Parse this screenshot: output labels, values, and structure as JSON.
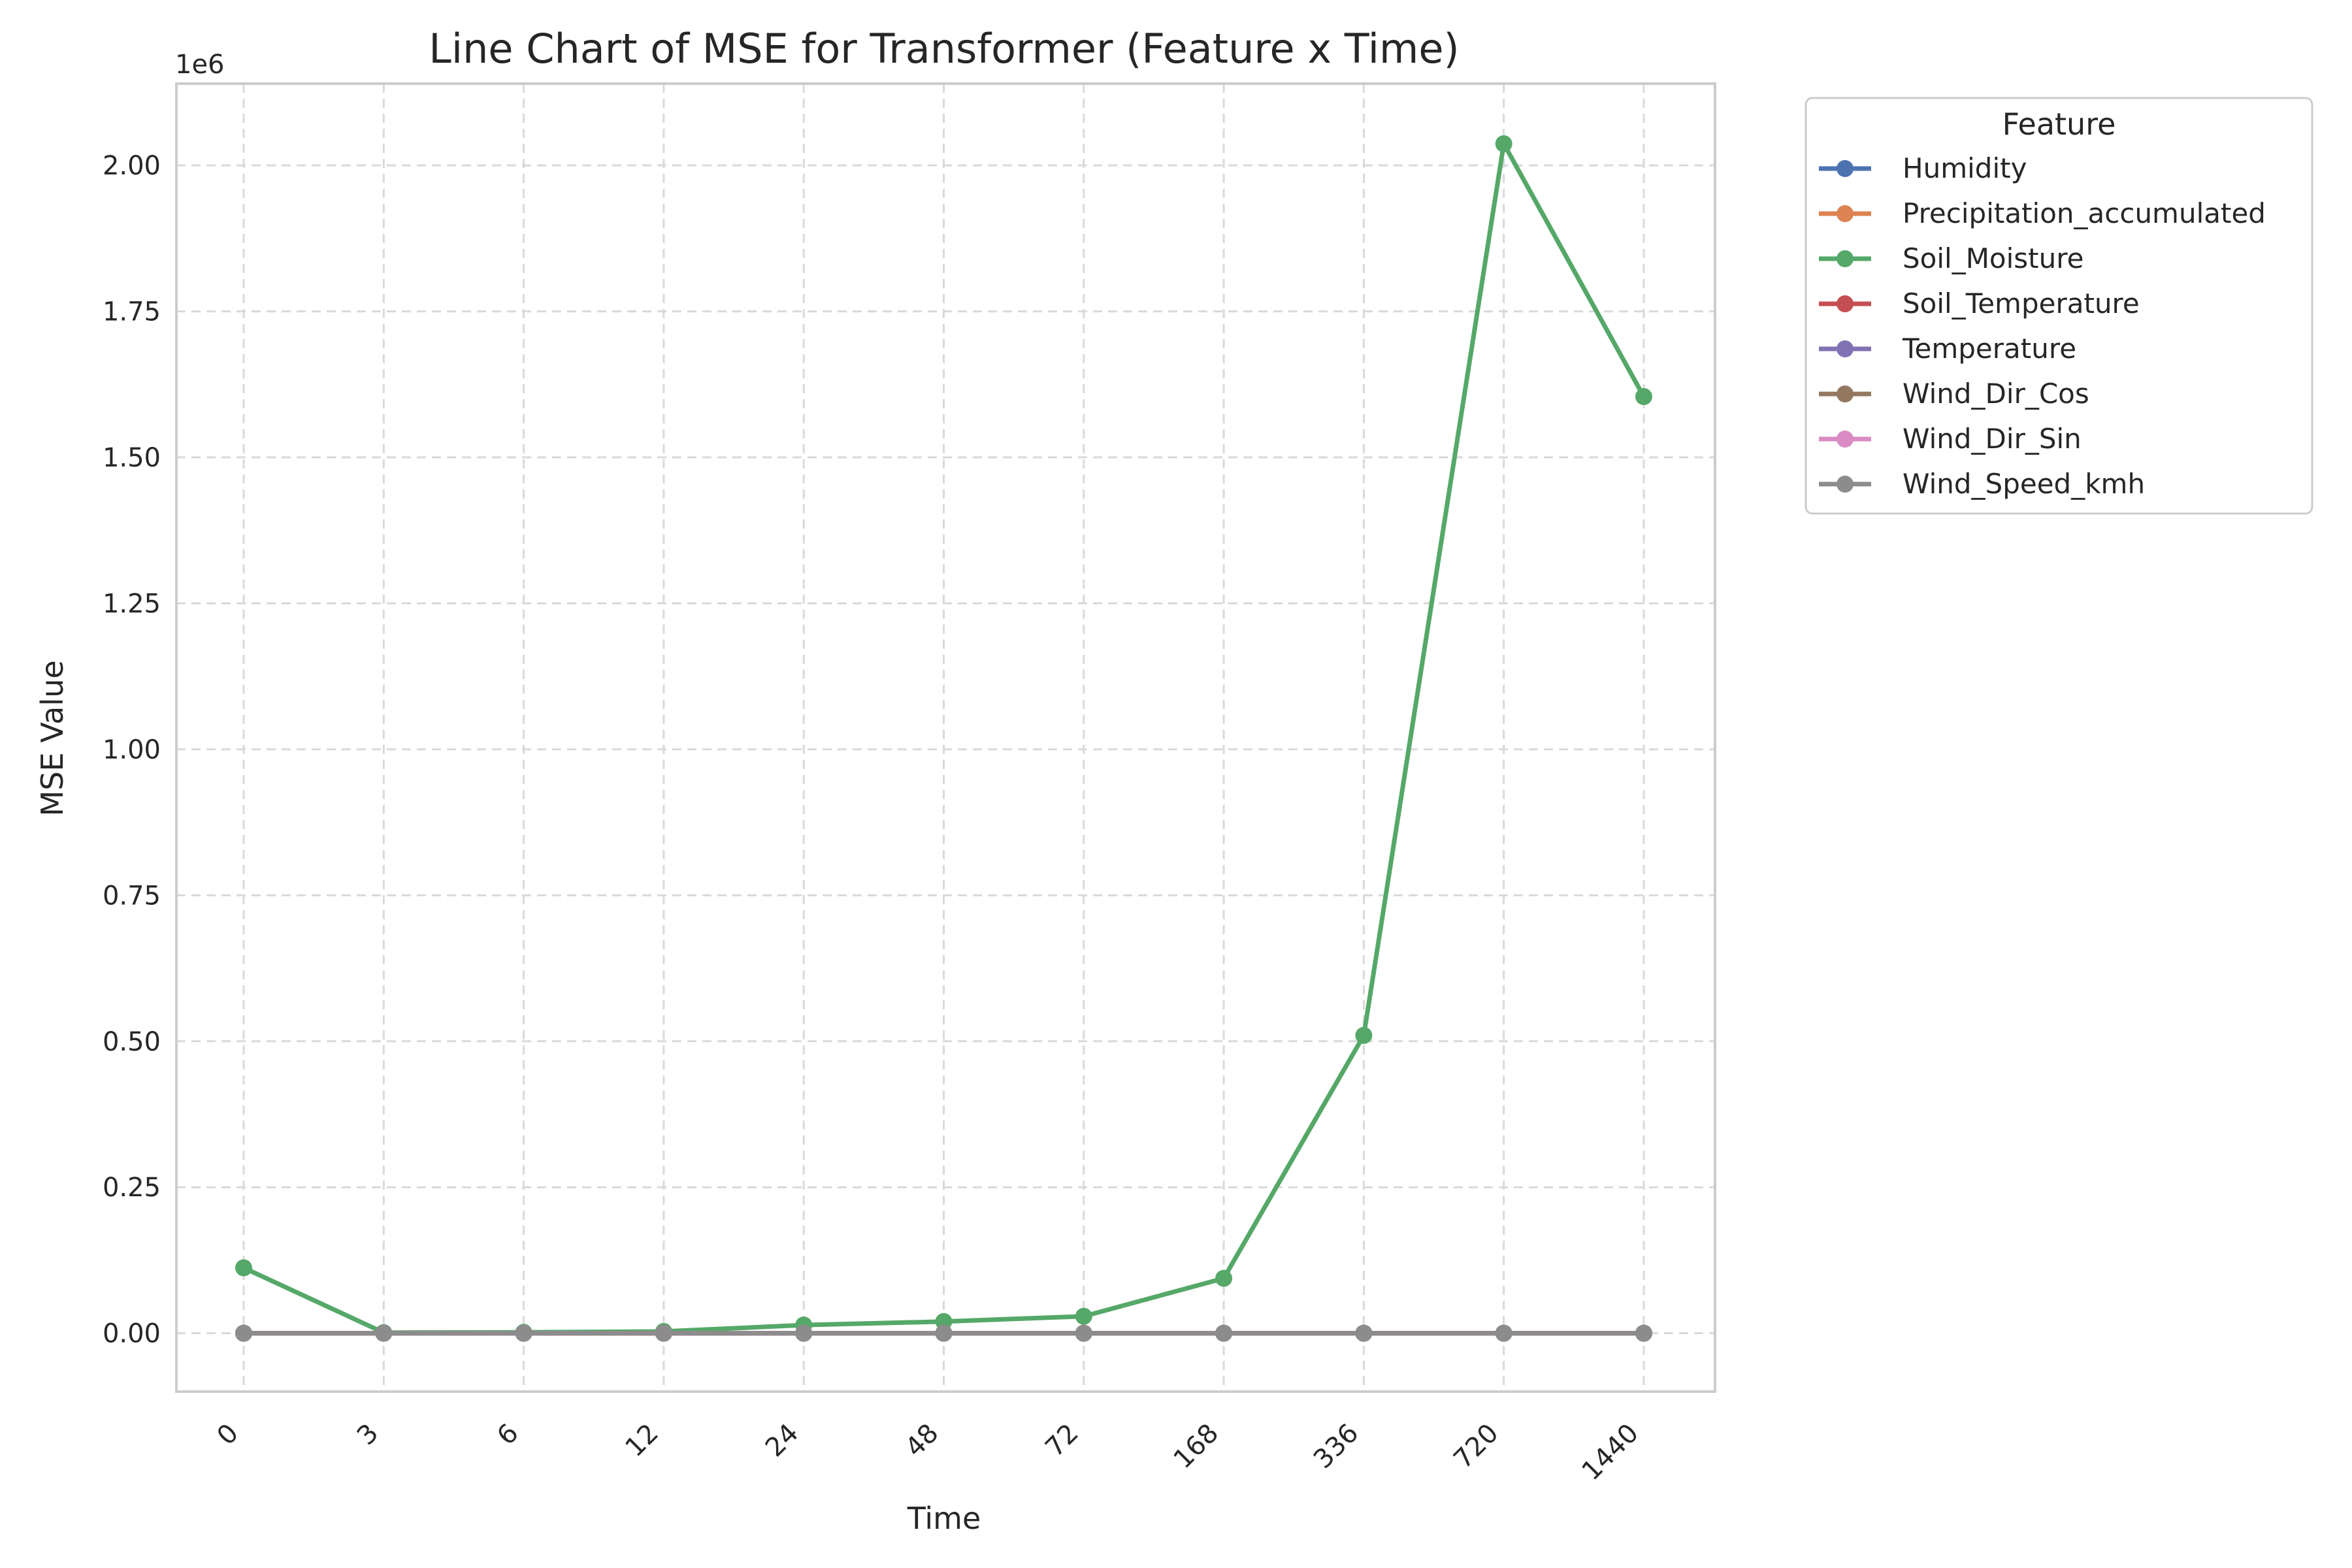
{
  "chart_data": {
    "type": "line",
    "title": "Line Chart of MSE for Transformer (Feature x Time)",
    "xlabel": "Time",
    "ylabel": "MSE Value",
    "y_offset_label": "1e6",
    "categories": [
      "0",
      "3",
      "6",
      "12",
      "24",
      "48",
      "72",
      "168",
      "336",
      "720",
      "1440"
    ],
    "ylim": [
      -100000,
      2140000
    ],
    "yticks": [
      0,
      250000,
      500000,
      750000,
      1000000,
      1250000,
      1500000,
      1750000,
      2000000
    ],
    "ytick_labels": [
      "0.00",
      "0.25",
      "0.50",
      "0.75",
      "1.00",
      "1.25",
      "1.50",
      "1.75",
      "2.00"
    ],
    "grid": true,
    "legend_title": "Feature",
    "legend_position": "outside upper right",
    "series": [
      {
        "name": "Humidity",
        "color": "#4c72b0",
        "values": [
          0,
          0,
          0,
          0,
          0,
          0,
          0,
          0,
          0,
          0,
          0
        ]
      },
      {
        "name": "Precipitation_accumulated",
        "color": "#dd8452",
        "values": [
          0,
          0,
          0,
          0,
          0,
          0,
          0,
          0,
          0,
          0,
          0
        ]
      },
      {
        "name": "Soil_Moisture",
        "color": "#55a868",
        "values": [
          112000,
          1000,
          1500,
          3000,
          14000,
          20000,
          29000,
          94000,
          510000,
          2037000,
          1604000
        ]
      },
      {
        "name": "Soil_Temperature",
        "color": "#c44e52",
        "values": [
          0,
          0,
          0,
          0,
          0,
          0,
          0,
          0,
          0,
          0,
          0
        ]
      },
      {
        "name": "Temperature",
        "color": "#8172b3",
        "values": [
          0,
          0,
          0,
          0,
          0,
          0,
          0,
          0,
          0,
          0,
          0
        ]
      },
      {
        "name": "Wind_Dir_Cos",
        "color": "#937860",
        "values": [
          0,
          0,
          0,
          0,
          0,
          0,
          0,
          0,
          0,
          0,
          0
        ]
      },
      {
        "name": "Wind_Dir_Sin",
        "color": "#da8bc3",
        "values": [
          0,
          0,
          0,
          0,
          0,
          0,
          0,
          0,
          0,
          0,
          0
        ]
      },
      {
        "name": "Wind_Speed_kmh",
        "color": "#8c8c8c",
        "values": [
          0,
          0,
          0,
          0,
          0,
          0,
          0,
          0,
          0,
          0,
          0
        ]
      }
    ]
  }
}
